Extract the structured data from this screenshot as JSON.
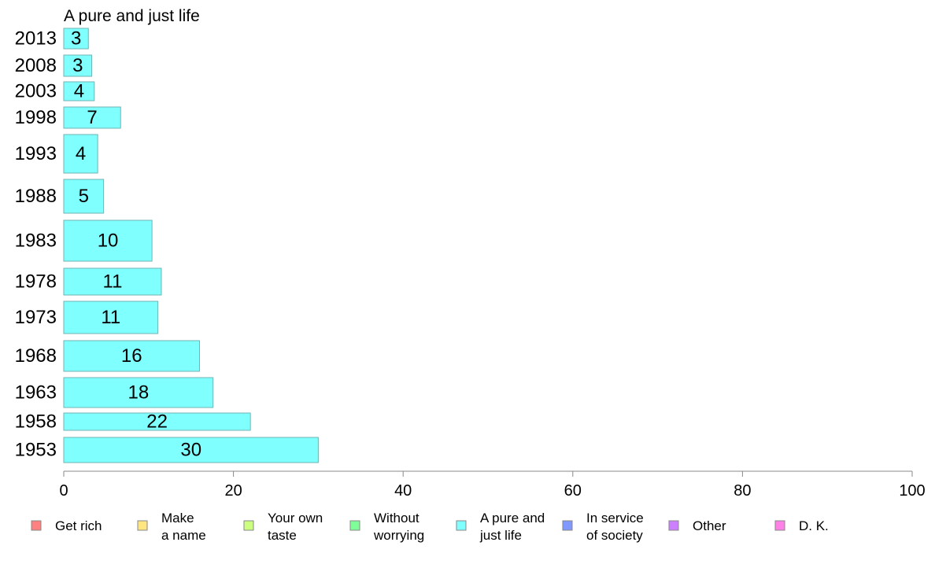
{
  "chart_data": {
    "type": "bar",
    "orientation": "horizontal",
    "title": "A pure and just life",
    "xlim": [
      0,
      100
    ],
    "xticks": [
      "0",
      "20",
      "40",
      "60",
      "80",
      "100"
    ],
    "grid": false,
    "categories": [
      "2013",
      "2008",
      "2003",
      "1998",
      "1993",
      "1988",
      "1983",
      "1978",
      "1973",
      "1968",
      "1963",
      "1958",
      "1953"
    ],
    "values": [
      3,
      3,
      4,
      7,
      4,
      5,
      10,
      11,
      11,
      16,
      18,
      22,
      30
    ],
    "bar_values": [
      2.9,
      3.3,
      3.6,
      6.7,
      4.0,
      4.7,
      10.4,
      11.5,
      11.1,
      16.0,
      17.6,
      22.0,
      30.0
    ],
    "labels": [
      "3",
      "3",
      "4",
      "7",
      "4",
      "5",
      "10",
      "11",
      "11",
      "16",
      "18",
      "22",
      "30"
    ],
    "bar_color": "#80ffff",
    "legend_placement": "bottom",
    "legend": [
      {
        "lines": [
          "Get rich"
        ],
        "color": "#ff8080"
      },
      {
        "lines": [
          "Make",
          "a name"
        ],
        "color": "#ffe680"
      },
      {
        "lines": [
          "Your own",
          "taste"
        ],
        "color": "#ccff80"
      },
      {
        "lines": [
          "Without",
          "worrying"
        ],
        "color": "#80ff99"
      },
      {
        "lines": [
          "A pure and",
          "just life"
        ],
        "color": "#80ffff"
      },
      {
        "lines": [
          "In service",
          "of society"
        ],
        "color": "#8099ff"
      },
      {
        "lines": [
          "Other"
        ],
        "color": "#cc80ff"
      },
      {
        "lines": [
          "D. K."
        ],
        "color": "#ff80e6"
      }
    ]
  }
}
